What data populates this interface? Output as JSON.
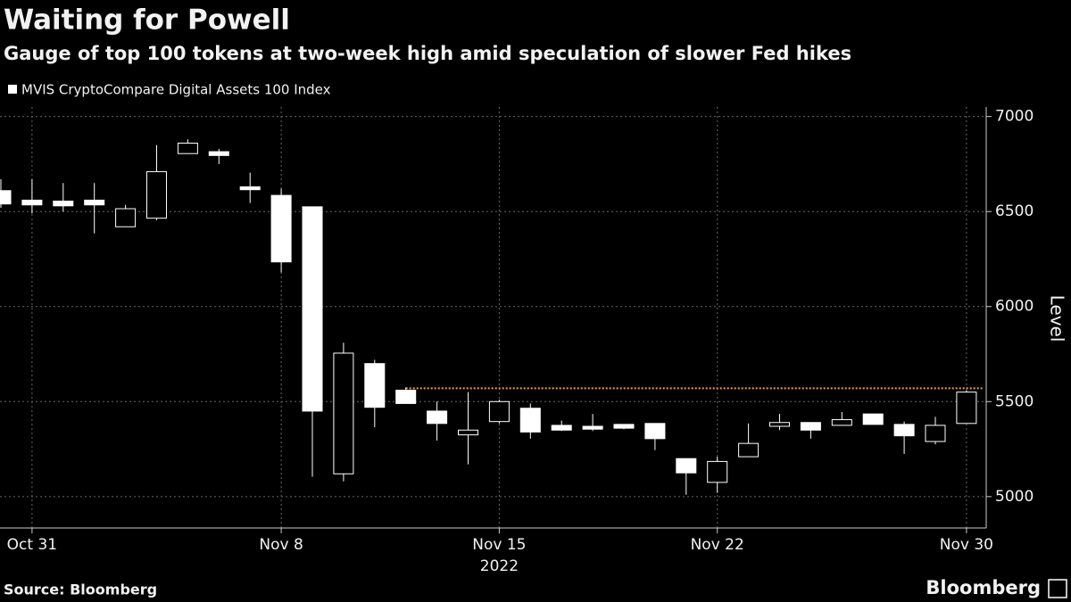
{
  "chart_data": {
    "type": "candlestick",
    "title": "Waiting for Powell",
    "subtitle": "Gauge of top 100 tokens at two-week high amid speculation of slower Fed hikes",
    "x": [
      "2022-10-30",
      "2022-10-31",
      "2022-11-01",
      "2022-11-02",
      "2022-11-03",
      "2022-11-04",
      "2022-11-05",
      "2022-11-06",
      "2022-11-07",
      "2022-11-08",
      "2022-11-09",
      "2022-11-10",
      "2022-11-11",
      "2022-11-12",
      "2022-11-13",
      "2022-11-14",
      "2022-11-15",
      "2022-11-16",
      "2022-11-17",
      "2022-11-18",
      "2022-11-19",
      "2022-11-20",
      "2022-11-21",
      "2022-11-22",
      "2022-11-23",
      "2022-11-24",
      "2022-11-25",
      "2022-11-26",
      "2022-11-27",
      "2022-11-28",
      "2022-11-29",
      "2022-11-30"
    ],
    "xticks": [
      {
        "value": "2022-10-31",
        "label": "Oct 31"
      },
      {
        "value": "2022-11-08",
        "label": "Nov 8"
      },
      {
        "value": "2022-11-15",
        "label": "Nov 15"
      },
      {
        "value": "2022-11-22",
        "label": "Nov 22"
      },
      {
        "value": "2022-11-30",
        "label": "Nov 30"
      }
    ],
    "x_year_label": "2022",
    "series": [
      {
        "name": "MVIS CryptoCompare Digital Assets 100 Index",
        "color": "#ffffff",
        "open": [
          6610,
          6560,
          6555,
          6560,
          6420,
          6465,
          6805,
          6815,
          6630,
          6585,
          6525,
          5120,
          5700,
          5560,
          5450,
          5325,
          5395,
          5465,
          5375,
          5370,
          5380,
          5385,
          5200,
          5075,
          5210,
          5370,
          5390,
          5375,
          5435,
          5380,
          5290,
          5385
        ],
        "high": [
          6670,
          6670,
          6650,
          6650,
          6535,
          6850,
          6880,
          6830,
          6705,
          6620,
          6525,
          5810,
          5720,
          5575,
          5500,
          5550,
          5510,
          5490,
          5400,
          5435,
          5380,
          5385,
          5200,
          5210,
          5385,
          5435,
          5390,
          5445,
          5435,
          5395,
          5420,
          5560
        ],
        "low": [
          6520,
          6490,
          6500,
          6385,
          6420,
          6455,
          6805,
          6750,
          6545,
          6180,
          5105,
          5080,
          5365,
          5490,
          5295,
          5170,
          5385,
          5305,
          5345,
          5345,
          5355,
          5245,
          5010,
          5020,
          5210,
          5350,
          5305,
          5375,
          5380,
          5225,
          5275,
          5385
        ],
        "close": [
          6540,
          6535,
          6530,
          6535,
          6515,
          6710,
          6860,
          6795,
          6615,
          6235,
          5450,
          5755,
          5470,
          5490,
          5385,
          5350,
          5500,
          5340,
          5350,
          5355,
          5360,
          5305,
          5125,
          5185,
          5280,
          5390,
          5350,
          5405,
          5380,
          5320,
          5375,
          5550
        ]
      }
    ],
    "reference_line": {
      "value": 5570,
      "from": "2022-11-12",
      "color": "#f0a040"
    },
    "ylim": [
      4835,
      7050
    ],
    "yticks": [
      5000,
      5500,
      6000,
      6500,
      7000
    ],
    "y_label": "Level",
    "grid": true,
    "source": "Source: Bloomberg",
    "brand": "Bloomberg"
  }
}
